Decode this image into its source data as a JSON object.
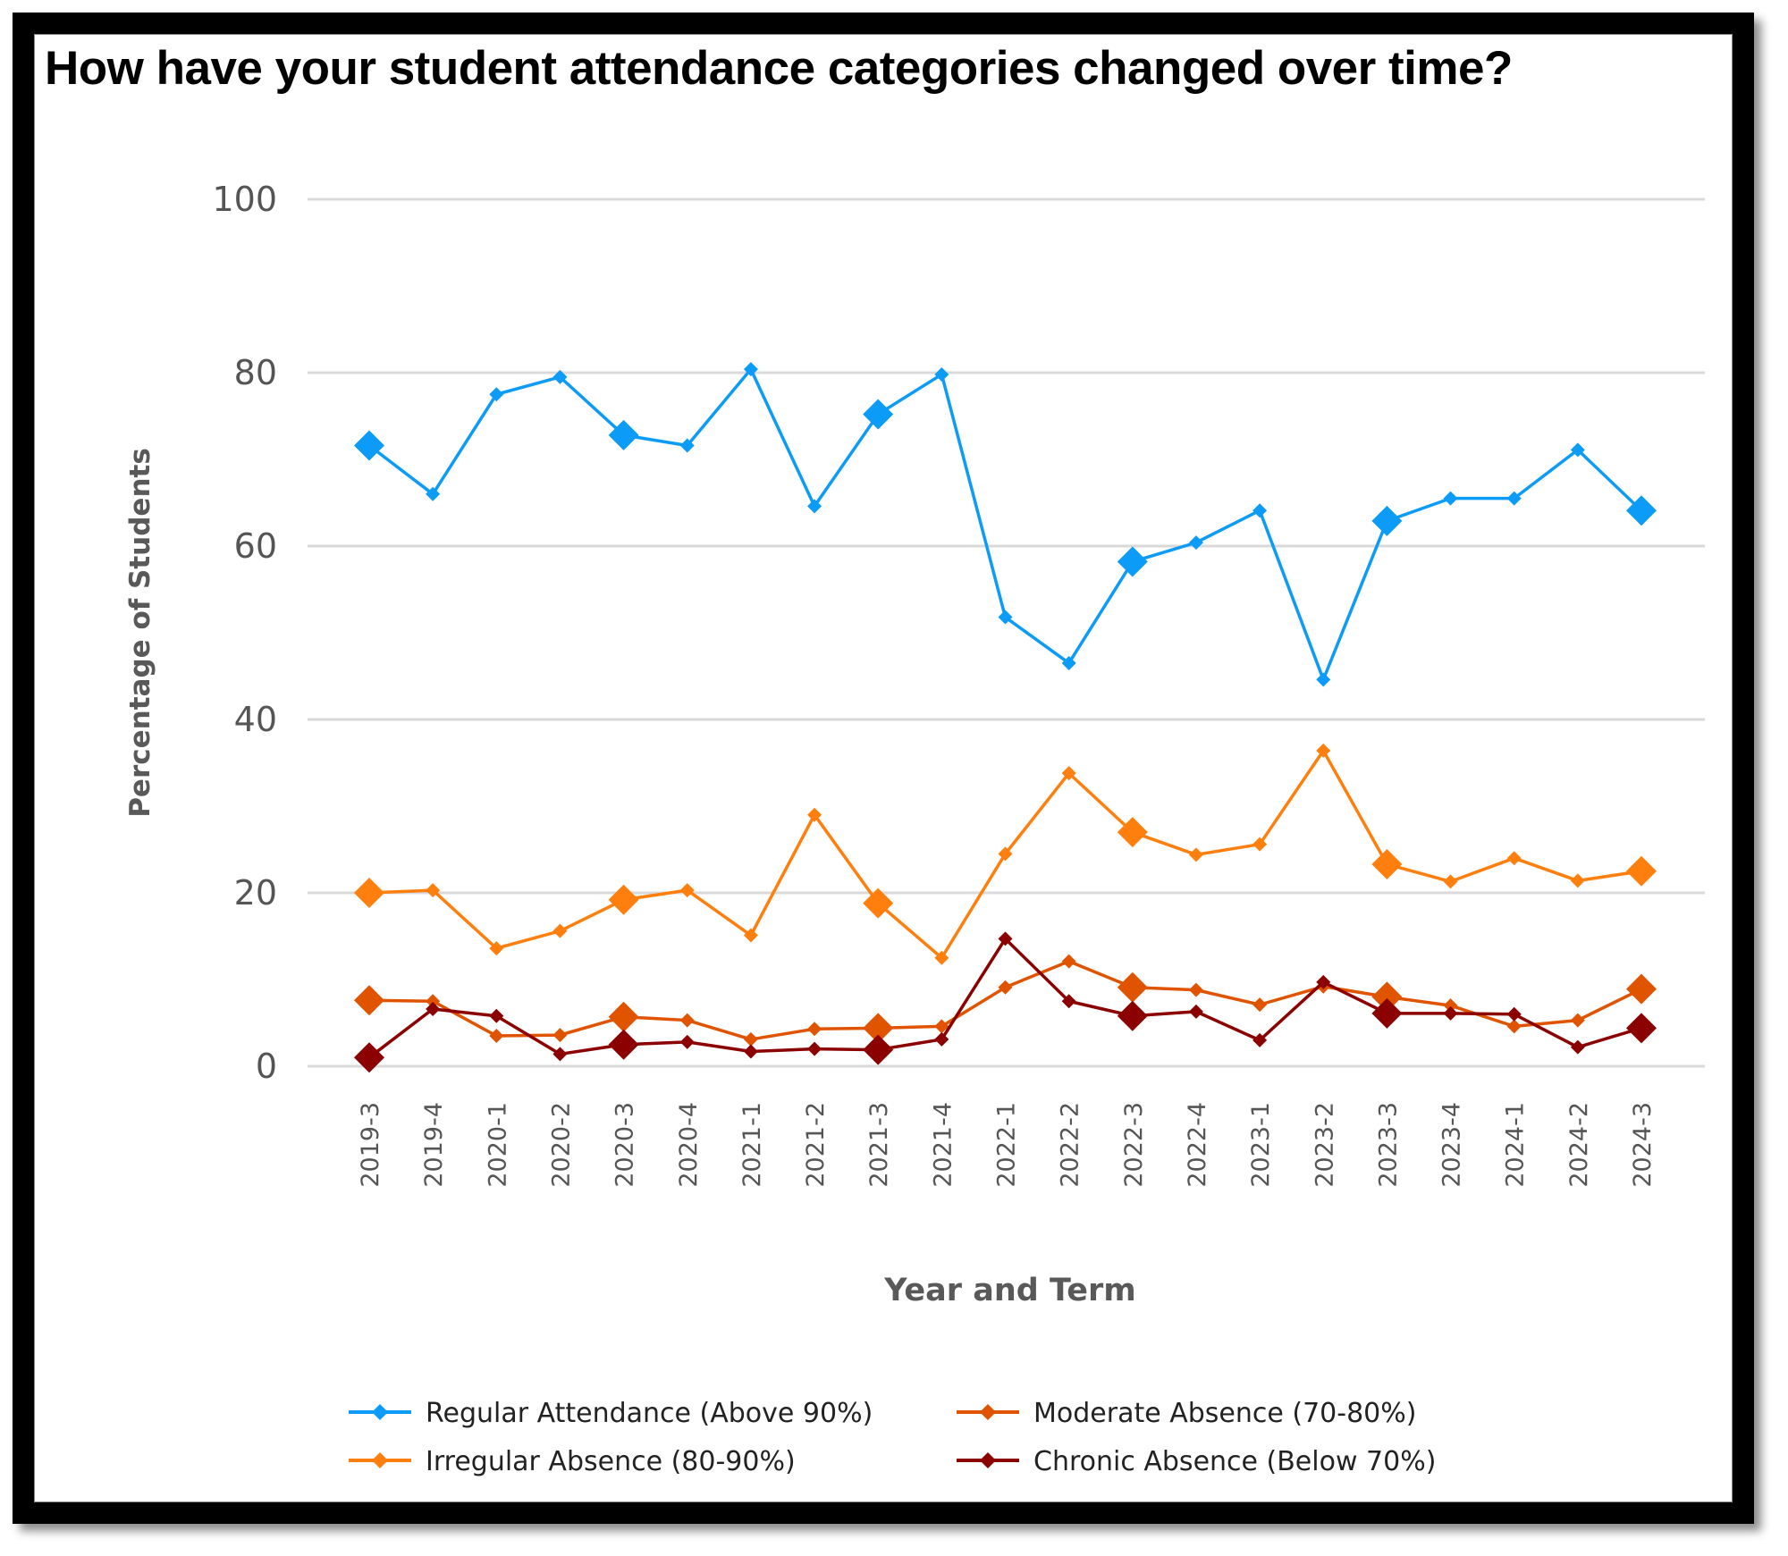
{
  "chart_data": {
    "type": "line",
    "title": "How have your student attendance categories changed over time?",
    "xlabel": "Year and Term",
    "ylabel": "Percentage of Students",
    "ylim": [
      0,
      100
    ],
    "yticks": [
      0,
      20,
      40,
      60,
      80,
      100
    ],
    "grid": "horizontal",
    "legend_position": "bottom",
    "categories": [
      "2019-3",
      "2019-4",
      "2020-1",
      "2020-2",
      "2020-3",
      "2020-4",
      "2021-1",
      "2021-2",
      "2021-3",
      "2021-4",
      "2022-1",
      "2022-2",
      "2022-3",
      "2022-4",
      "2023-1",
      "2023-2",
      "2023-3",
      "2023-4",
      "2024-1",
      "2024-2",
      "2024-3"
    ],
    "series": [
      {
        "name": "Regular Attendance (Above 90%)",
        "color": "#0C9BF7",
        "values": [
          71.6,
          66.0,
          77.5,
          79.5,
          72.8,
          71.6,
          80.4,
          64.6,
          75.2,
          79.8,
          51.8,
          46.5,
          58.2,
          60.4,
          64.1,
          44.6,
          62.9,
          65.5,
          65.5,
          71.1,
          64.1
        ]
      },
      {
        "name": "Irregular Absence (80-90%)",
        "color": "#FF7F0E",
        "values": [
          20.0,
          20.3,
          13.6,
          15.6,
          19.2,
          20.3,
          15.1,
          29.0,
          18.8,
          12.5,
          24.5,
          33.8,
          27.0,
          24.4,
          25.6,
          36.4,
          23.3,
          21.3,
          24.0,
          21.4,
          22.5
        ]
      },
      {
        "name": "Moderate Absence (70-80%)",
        "color": "#E05400",
        "values": [
          7.6,
          7.5,
          3.5,
          3.6,
          5.7,
          5.3,
          3.1,
          4.3,
          4.4,
          4.6,
          9.1,
          12.1,
          9.1,
          8.8,
          7.1,
          9.2,
          8.0,
          7.0,
          4.6,
          5.3,
          8.9
        ]
      },
      {
        "name": "Chronic Absence (Below 70%)",
        "color": "#8B0000",
        "values": [
          1.0,
          6.6,
          5.8,
          1.4,
          2.5,
          2.8,
          1.7,
          2.0,
          1.9,
          3.1,
          14.7,
          7.5,
          5.8,
          6.3,
          3.0,
          9.7,
          6.1,
          6.1,
          6.0,
          2.2,
          4.4
        ]
      }
    ],
    "highlighted_points": [
      "2019-3",
      "2020-3",
      "2021-3",
      "2022-3",
      "2023-3",
      "2024-3"
    ],
    "legend_order": [
      0,
      2,
      1,
      3
    ]
  }
}
